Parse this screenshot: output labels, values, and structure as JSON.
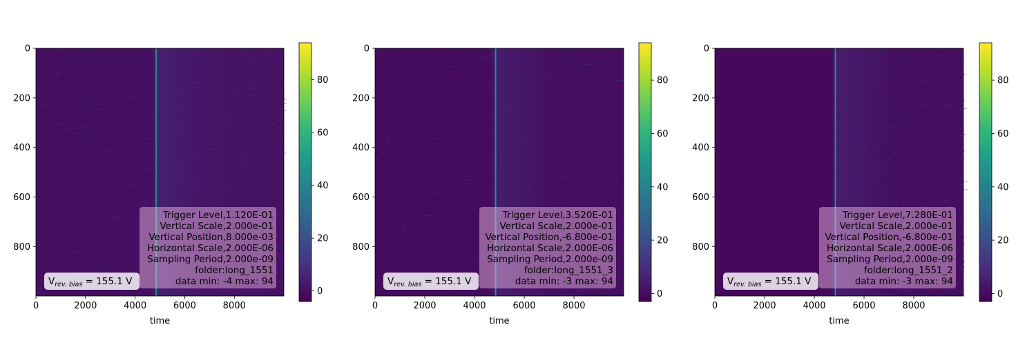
{
  "colormap": {
    "name": "viridis",
    "stops": [
      "#440154",
      "#482878",
      "#3e4a89",
      "#31688e",
      "#26828e",
      "#1f9e89",
      "#35b779",
      "#6ece58",
      "#b5de2b",
      "#fde725"
    ]
  },
  "chart_data": [
    {
      "type": "heatmap",
      "xlabel": "time",
      "xlim": [
        0,
        9999
      ],
      "ylim": [
        999,
        0
      ],
      "x_ticks": [
        0,
        2000,
        4000,
        6000,
        8000
      ],
      "y_ticks": [
        0,
        200,
        400,
        600,
        800
      ],
      "colorbar": {
        "range": [
          -4,
          94
        ],
        "ticks": [
          0,
          20,
          40,
          60,
          80
        ]
      },
      "pulse_time": 4850,
      "background_level": 0,
      "info_lines": [
        "Trigger Level,1.120E-01",
        "Vertical Scale,2.000e-01",
        "Vertical Position,8.000e-03",
        "Horizontal Scale,2.000E-06",
        "Sampling Period,2.000e-09",
        "folder:long_1551",
        "data min: -4 max: 94"
      ],
      "bias_label": {
        "prefix": "V",
        "sub": "rev. bias",
        "suffix": " = 155.1 V"
      }
    },
    {
      "type": "heatmap",
      "xlabel": "time",
      "xlim": [
        0,
        9999
      ],
      "ylim": [
        999,
        0
      ],
      "x_ticks": [
        0,
        2000,
        4000,
        6000,
        8000
      ],
      "y_ticks": [
        0,
        200,
        400,
        600,
        800
      ],
      "colorbar": {
        "range": [
          -3,
          94
        ],
        "ticks": [
          0,
          20,
          40,
          60,
          80
        ]
      },
      "pulse_time": 4850,
      "background_level": 0,
      "info_lines": [
        "Trigger Level,3.520E-01",
        "Vertical Scale,2.000e-01",
        "Vertical Position,-6.800e-01",
        "Horizontal Scale,2.000E-06",
        "Sampling Period,2.000e-09",
        "folder:long_1551_3",
        "data min: -3 max: 94"
      ],
      "bias_label": {
        "prefix": "V",
        "sub": "rev. bias",
        "suffix": " = 155.1 V"
      }
    },
    {
      "type": "heatmap",
      "xlabel": "time",
      "xlim": [
        0,
        9999
      ],
      "ylim": [
        999,
        0
      ],
      "x_ticks": [
        0,
        2000,
        4000,
        6000,
        8000
      ],
      "y_ticks": [
        0,
        200,
        400,
        600,
        800
      ],
      "colorbar": {
        "range": [
          -3,
          94
        ],
        "ticks": [
          0,
          20,
          40,
          60,
          80
        ]
      },
      "pulse_time": 4850,
      "background_level": 0,
      "info_lines": [
        "Trigger Level,7.280E-01",
        "Vertical Scale,2.000e-01",
        "Vertical Position,-6.800e-01",
        "Horizontal Scale,2.000E-06",
        "Sampling Period,2.000e-09",
        "folder:long_1551_2",
        "data min: -3 max: 94"
      ],
      "bias_label": {
        "prefix": "V",
        "sub": "rev. bias",
        "suffix": " = 155.1 V"
      }
    }
  ]
}
